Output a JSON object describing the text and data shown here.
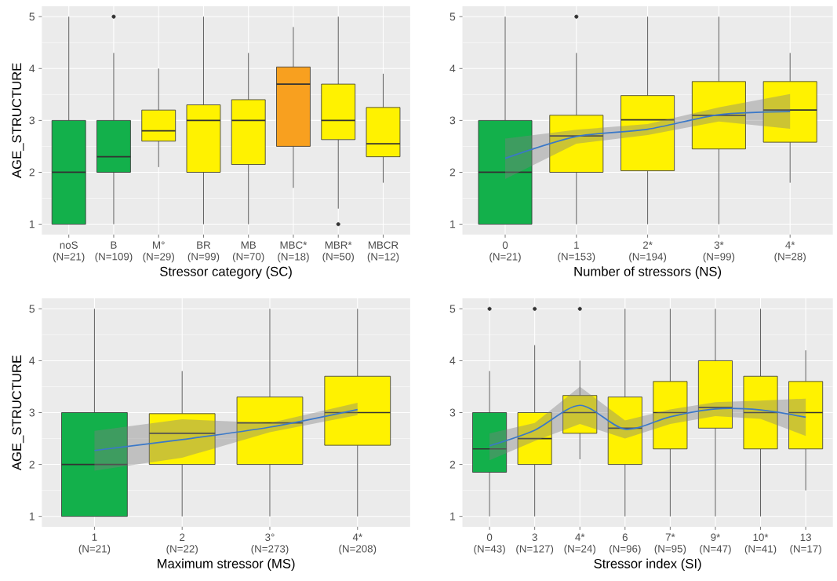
{
  "chart_data": [
    {
      "type": "box",
      "xlabel": "Stressor category (SC)",
      "ylabel": "AGE_STRUCTURE",
      "ylim": [
        0.8,
        5.2
      ],
      "yticks": [
        1,
        2,
        3,
        4,
        5
      ],
      "grid": true,
      "categories": [
        "noS (N=21)",
        "B (N=109)",
        "M° (N=29)",
        "BR (N=99)",
        "MB (N=70)",
        "MBC* (N=18)",
        "MBR* (N=50)",
        "MBCR (N=12)"
      ],
      "series": [
        {
          "colors": [
            "#13b04b",
            "#13b04b",
            "#fff200",
            "#fff200",
            "#fff200",
            "#f8a01f",
            "#fff200",
            "#fff200"
          ],
          "boxes": [
            {
              "low": 1,
              "q1": 1,
              "median": 2,
              "q3": 3,
              "high": 5
            },
            {
              "low": 1,
              "q1": 2,
              "median": 2.3,
              "q3": 3,
              "high": 4.3,
              "outliers": [
                5
              ]
            },
            {
              "low": 2.1,
              "q1": 2.6,
              "median": 2.8,
              "q3": 3.2,
              "high": 4
            },
            {
              "low": 1,
              "q1": 2,
              "median": 3,
              "q3": 3.3,
              "high": 5
            },
            {
              "low": 1,
              "q1": 2.15,
              "median": 3,
              "q3": 3.4,
              "high": 4.3
            },
            {
              "low": 1.7,
              "q1": 2.5,
              "median": 3.7,
              "q3": 4.03,
              "high": 4.8
            },
            {
              "low": 1.3,
              "q1": 2.63,
              "median": 3,
              "q3": 3.7,
              "high": 5,
              "outliers": [
                1
              ]
            },
            {
              "low": 1.8,
              "q1": 2.3,
              "median": 2.55,
              "q3": 3.25,
              "high": 3.9
            }
          ]
        }
      ]
    },
    {
      "type": "box",
      "xlabel": "Number of stressors (NS)",
      "ylim": [
        0.8,
        5.2
      ],
      "yticks": [
        1,
        2,
        3,
        4,
        5
      ],
      "grid": true,
      "categories": [
        "0 (N=21)",
        "1 (N=153)",
        "2* (N=194)",
        "3* (N=99)",
        "4* (N=28)"
      ],
      "series": [
        {
          "colors": [
            "#13b04b",
            "#fff200",
            "#fff200",
            "#fff200",
            "#fff200"
          ],
          "boxes": [
            {
              "low": 1,
              "q1": 1,
              "median": 2,
              "q3": 3,
              "high": 5
            },
            {
              "low": 1,
              "q1": 2,
              "median": 2.7,
              "q3": 3.1,
              "high": 4.3,
              "outliers": [
                5
              ]
            },
            {
              "low": 1,
              "q1": 2.03,
              "median": 3.01,
              "q3": 3.48,
              "high": 5
            },
            {
              "low": 1,
              "q1": 2.45,
              "median": 3.1,
              "q3": 3.75,
              "high": 5
            },
            {
              "low": 1.8,
              "q1": 2.58,
              "median": 3.2,
              "q3": 3.75,
              "high": 4.3
            }
          ]
        },
        {
          "type": "line",
          "color": "#3a78c8",
          "values": [
            2.27,
            2.69,
            2.83,
            3.11,
            3.17
          ],
          "lower": [
            1.87,
            2.55,
            2.72,
            2.98,
            2.84
          ],
          "upper": [
            2.65,
            2.82,
            2.93,
            3.25,
            3.51
          ]
        }
      ]
    },
    {
      "type": "box",
      "xlabel": "Maximum stressor (MS)",
      "ylabel": "AGE_STRUCTURE",
      "ylim": [
        0.8,
        5.2
      ],
      "yticks": [
        1,
        2,
        3,
        4,
        5
      ],
      "grid": true,
      "categories": [
        "1 (N=21)",
        "2 (N=22)",
        "3° (N=273)",
        "4* (N=208)"
      ],
      "series": [
        {
          "colors": [
            "#13b04b",
            "#fff200",
            "#fff200",
            "#fff200"
          ],
          "boxes": [
            {
              "low": 1,
              "q1": 1,
              "median": 2,
              "q3": 3,
              "high": 5
            },
            {
              "low": 1,
              "q1": 2,
              "median": 2.6,
              "q3": 2.98,
              "high": 3.8
            },
            {
              "low": 1,
              "q1": 2,
              "median": 2.8,
              "q3": 3.3,
              "high": 5
            },
            {
              "low": 1,
              "q1": 2.37,
              "median": 3,
              "q3": 3.7,
              "high": 5
            }
          ]
        },
        {
          "type": "line",
          "color": "#3a78c8",
          "values": [
            2.27,
            2.48,
            2.72,
            3.06
          ],
          "lower": [
            1.88,
            2.13,
            2.62,
            2.95
          ],
          "upper": [
            2.65,
            2.87,
            2.8,
            3.19
          ]
        }
      ]
    },
    {
      "type": "box",
      "xlabel": "Stressor index (SI)",
      "ylim": [
        0.8,
        5.2
      ],
      "yticks": [
        1,
        2,
        3,
        4,
        5
      ],
      "grid": true,
      "categories": [
        "0 (N=43)",
        "3 (N=127)",
        "4* (N=24)",
        "6 (N=96)",
        "7* (N=95)",
        "9* (N=47)",
        "10* (N=41)",
        "13 (N=17)"
      ],
      "series": [
        {
          "colors": [
            "#13b04b",
            "#fff200",
            "#fff200",
            "#fff200",
            "#fff200",
            "#fff200",
            "#fff200",
            "#fff200"
          ],
          "boxes": [
            {
              "low": 1,
              "q1": 1.85,
              "median": 2.3,
              "q3": 3,
              "high": 3.8,
              "outliers": [
                5
              ]
            },
            {
              "low": 1,
              "q1": 2,
              "median": 2.5,
              "q3": 3,
              "high": 4.3,
              "outliers": [
                5
              ]
            },
            {
              "low": 2.1,
              "q1": 2.6,
              "median": 3,
              "q3": 3.33,
              "high": 4,
              "outliers": [
                5
              ]
            },
            {
              "low": 1,
              "q1": 2,
              "median": 2.7,
              "q3": 3.3,
              "high": 5
            },
            {
              "low": 1,
              "q1": 2.3,
              "median": 3,
              "q3": 3.6,
              "high": 5
            },
            {
              "low": 1,
              "q1": 2.7,
              "median": 3.1,
              "q3": 4,
              "high": 5
            },
            {
              "low": 1,
              "q1": 2.3,
              "median": 3,
              "q3": 3.7,
              "high": 5
            },
            {
              "low": 1.5,
              "q1": 2.3,
              "median": 3,
              "q3": 3.6,
              "high": 4.2
            }
          ]
        },
        {
          "type": "line",
          "color": "#3a78c8",
          "values": [
            2.36,
            2.66,
            3.14,
            2.68,
            2.92,
            3.07,
            3.05,
            2.91
          ],
          "lower": [
            2.08,
            2.45,
            2.78,
            2.5,
            2.78,
            2.93,
            2.88,
            2.55
          ],
          "upper": [
            2.6,
            2.8,
            3.5,
            2.85,
            3.06,
            3.2,
            3.23,
            3.27
          ]
        }
      ]
    }
  ]
}
